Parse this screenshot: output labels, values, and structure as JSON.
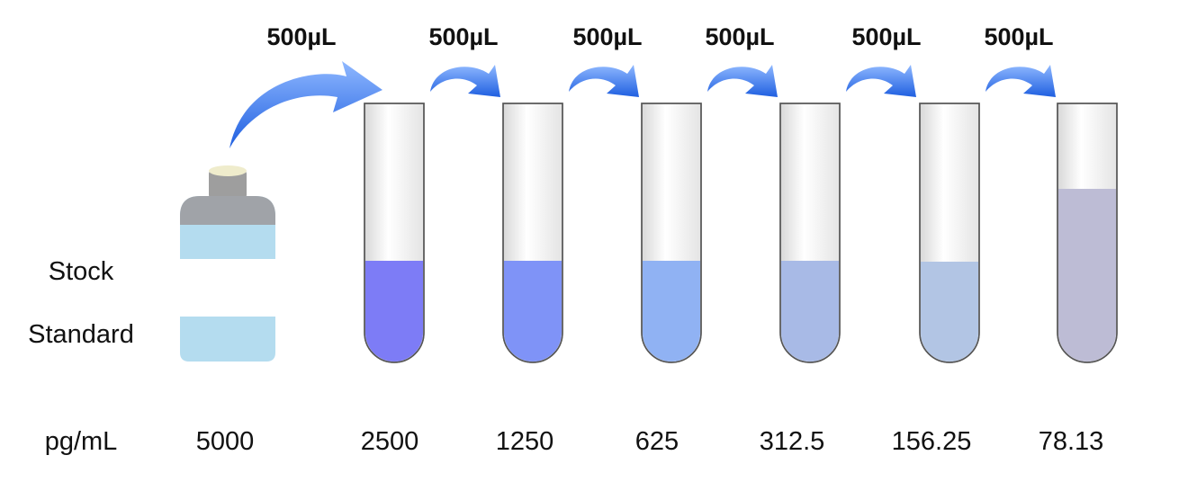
{
  "transfers": [
    "500µL",
    "500µL",
    "500µL",
    "500µL",
    "500µL",
    "500µL"
  ],
  "stock_label": [
    "Stock",
    "Standard"
  ],
  "unit": "pg/mL",
  "concentrations": [
    "5000",
    "2500",
    "1250",
    "625",
    "312.5",
    "156.25",
    "78.13"
  ]
}
